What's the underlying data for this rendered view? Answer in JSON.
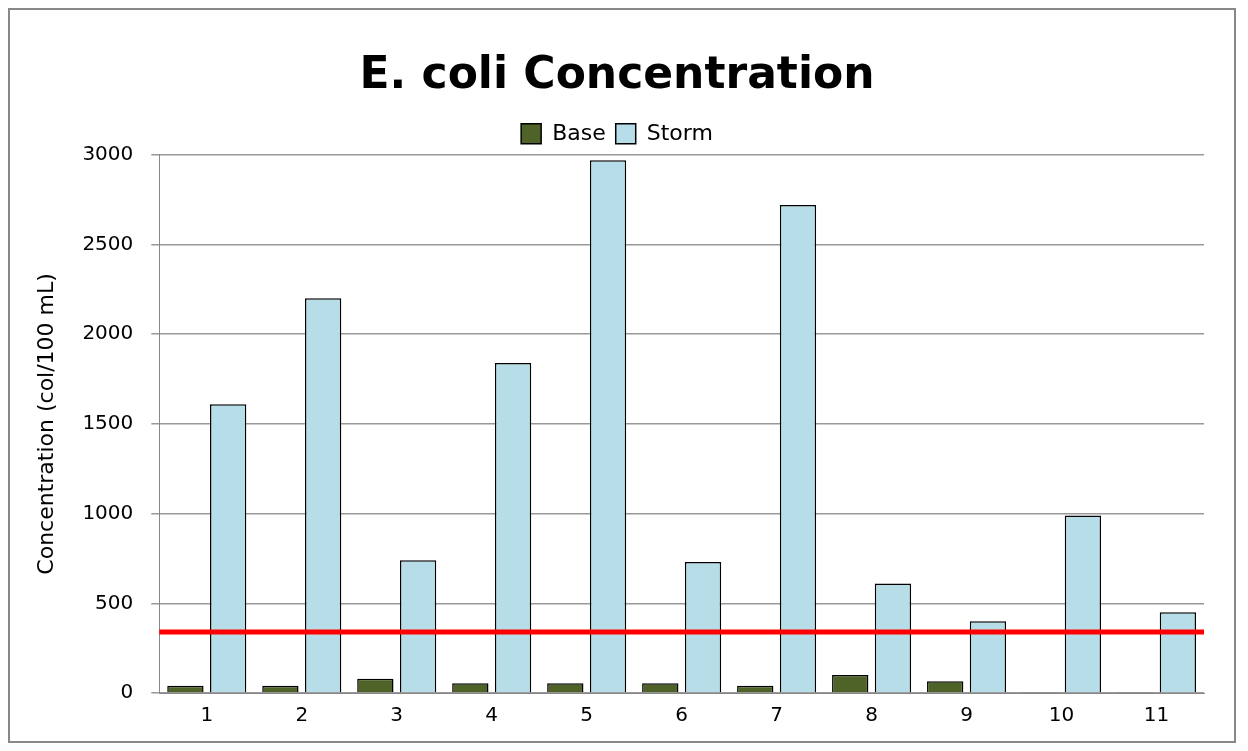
{
  "chart_data": {
    "type": "bar",
    "title": "E. coli Concentration",
    "ylabel": "Concentration (col/100 mL)",
    "categories": [
      "1",
      "2",
      "3",
      "4",
      "5",
      "6",
      "7",
      "8",
      "9",
      "10",
      "11"
    ],
    "series": [
      {
        "name": "Base",
        "color": "#4f6228",
        "values": [
          40,
          40,
          80,
          55,
          55,
          55,
          40,
          100,
          65,
          5,
          5
        ]
      },
      {
        "name": "Storm",
        "color": "#b7dde8",
        "values": [
          1610,
          2200,
          740,
          1840,
          2970,
          730,
          2720,
          610,
          400,
          990,
          450
        ]
      }
    ],
    "ylim": [
      0,
      3000
    ],
    "yticks": [
      0,
      500,
      1000,
      1500,
      2000,
      2500,
      3000
    ],
    "grid": "y",
    "legend": "top",
    "ref_lines": [
      {
        "axis": "y",
        "value": 340,
        "color": "#ff0000"
      }
    ]
  }
}
